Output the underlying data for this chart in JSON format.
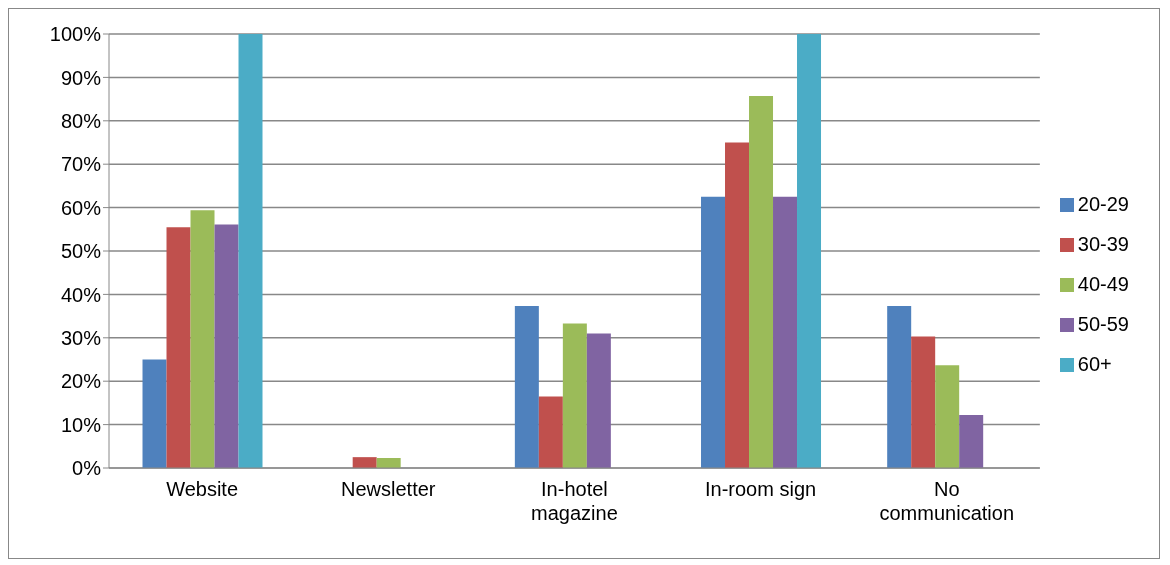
{
  "chart_data": {
    "type": "bar",
    "categories": [
      "Website",
      "Newsletter",
      "In-hotel magazine",
      "In-room sign",
      "No communication"
    ],
    "series": [
      {
        "name": "20-29",
        "color": "#4f81bd",
        "values": [
          25,
          0,
          37.3,
          62.5,
          37.3
        ]
      },
      {
        "name": "30-39",
        "color": "#c0504d",
        "values": [
          55.5,
          2.5,
          16.5,
          75,
          30.3
        ]
      },
      {
        "name": "40-49",
        "color": "#9bbb59",
        "values": [
          59.4,
          2.3,
          33.3,
          85.7,
          23.7
        ]
      },
      {
        "name": "50-59",
        "color": "#8064a2",
        "values": [
          56.1,
          0,
          31,
          62.5,
          12.2
        ]
      },
      {
        "name": "60+",
        "color": "#4bacc6",
        "values": [
          100,
          0,
          0,
          100,
          0
        ]
      }
    ],
    "ylim": [
      0,
      100
    ],
    "yticks": [
      {
        "value": 0,
        "label": "0%"
      },
      {
        "value": 10,
        "label": "10%"
      },
      {
        "value": 20,
        "label": "20%"
      },
      {
        "value": 30,
        "label": "30%"
      },
      {
        "value": 40,
        "label": "40%"
      },
      {
        "value": 50,
        "label": "50%"
      },
      {
        "value": 60,
        "label": "60%"
      },
      {
        "value": 70,
        "label": "70%"
      },
      {
        "value": 80,
        "label": "80%"
      },
      {
        "value": 90,
        "label": "90%"
      },
      {
        "value": 100,
        "label": "100%"
      }
    ],
    "grid": "y",
    "legend": "right"
  }
}
